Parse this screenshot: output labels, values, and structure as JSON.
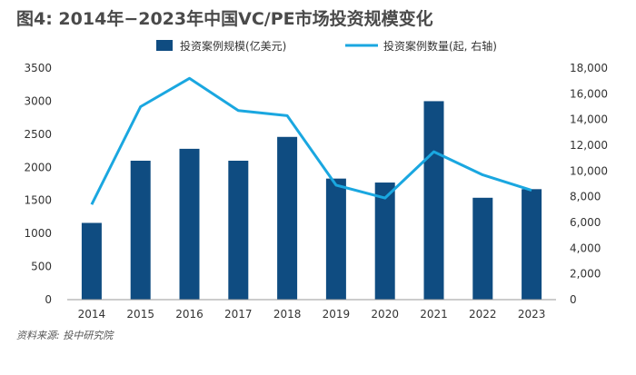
{
  "chart_data": {
    "type": "bar",
    "title": "图4: 2014年−2023年中国VC/PE市场投资规模变化",
    "categories": [
      "2014",
      "2015",
      "2016",
      "2017",
      "2018",
      "2019",
      "2020",
      "2021",
      "2022",
      "2023"
    ],
    "series": [
      {
        "name": "投资案例规模(亿美元)",
        "type": "bar",
        "axis": "left",
        "color": "#0f4c81",
        "values": [
          1160,
          2100,
          2280,
          2100,
          2460,
          1830,
          1770,
          3000,
          1540,
          1670
        ]
      },
      {
        "name": "投资案例数量(起, 右轴)",
        "type": "line",
        "axis": "right",
        "color": "#1aa7e0",
        "values": [
          7400,
          15000,
          17200,
          14700,
          14300,
          8900,
          7900,
          11500,
          9700,
          8500
        ]
      }
    ],
    "y_left": {
      "min": 0,
      "max": 3500,
      "ticks": [
        "0",
        "500",
        "1000",
        "1500",
        "2000",
        "2500",
        "3000",
        "3500"
      ]
    },
    "y_right": {
      "min": 0,
      "max": 18000,
      "ticks": [
        "0",
        "2,000",
        "4,000",
        "6,000",
        "8,000",
        "10,000",
        "12,000",
        "14,000",
        "16,000",
        "18,000"
      ]
    },
    "grid": false,
    "legend_position": "top-center",
    "source": "资料来源: 投中研究院"
  }
}
